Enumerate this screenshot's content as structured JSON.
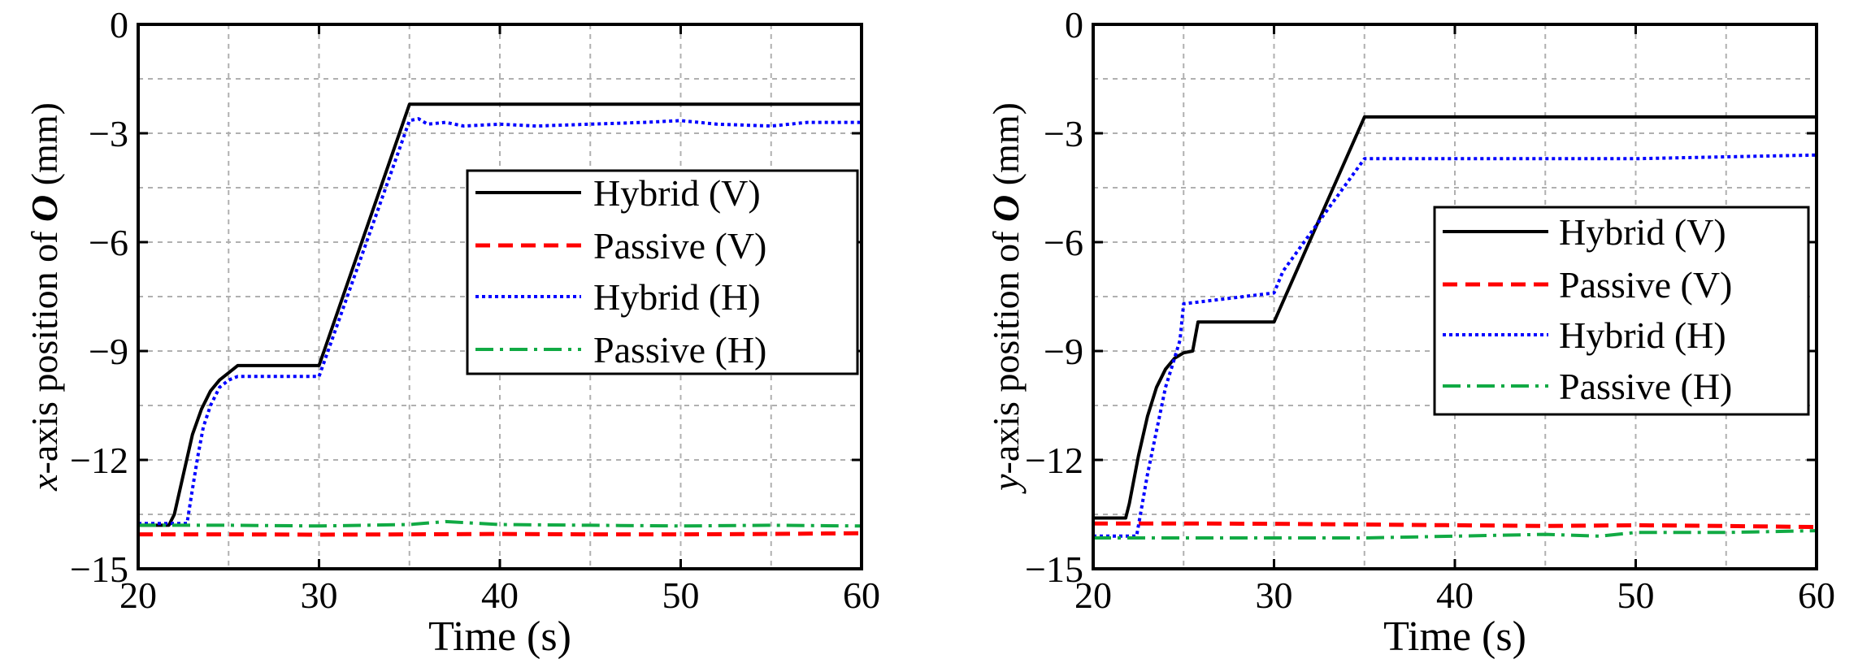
{
  "chart_data": [
    {
      "type": "line",
      "xlabel": "Time (s)",
      "ylabel": {
        "var": "x",
        "mid": "-axis position of ",
        "bold": "O",
        "unit": " (mm)"
      },
      "xlim": [
        20,
        60
      ],
      "ylim": [
        -15,
        0
      ],
      "xticks": [
        20,
        30,
        40,
        50,
        60
      ],
      "xtick_labels": [
        "20",
        "30",
        "40",
        "50",
        "60"
      ],
      "yticks": [
        0,
        -3,
        -6,
        -9,
        -12,
        -15
      ],
      "ytick_labels": [
        "0",
        "−3",
        "−6",
        "−9",
        "−12",
        "−15"
      ],
      "grid": true,
      "legend_position": "right",
      "series": [
        {
          "name": "Hybrid (V)",
          "color": "#000000",
          "style": "solid",
          "x": [
            20,
            21.7,
            22.0,
            22.5,
            23.0,
            23.5,
            24.0,
            24.5,
            25.0,
            25.5,
            30.0,
            35.0,
            36,
            40,
            45,
            50,
            55,
            60
          ],
          "y": [
            -13.8,
            -13.8,
            -13.5,
            -12.4,
            -11.3,
            -10.6,
            -10.1,
            -9.8,
            -9.6,
            -9.4,
            -9.4,
            -2.2,
            -2.2,
            -2.2,
            -2.2,
            -2.2,
            -2.2,
            -2.2
          ]
        },
        {
          "name": "Passive (V)",
          "color": "#ff0000",
          "style": "dashed",
          "x": [
            20,
            25,
            30,
            35,
            40,
            45,
            50,
            55,
            60
          ],
          "y": [
            -14.05,
            -14.05,
            -14.06,
            -14.05,
            -14.04,
            -14.05,
            -14.05,
            -14.04,
            -14.02
          ]
        },
        {
          "name": "Hybrid (H)",
          "color": "#0000ff",
          "style": "dotted",
          "x": [
            20,
            22.7,
            23.0,
            23.3,
            23.6,
            24.0,
            24.5,
            25.0,
            25.5,
            30.0,
            35.0,
            35.5,
            36,
            37,
            38,
            40,
            42,
            45,
            48,
            50,
            52,
            55,
            57,
            60
          ],
          "y": [
            -13.75,
            -13.75,
            -12.8,
            -11.9,
            -11.1,
            -10.5,
            -10.0,
            -9.8,
            -9.7,
            -9.7,
            -2.65,
            -2.6,
            -2.75,
            -2.7,
            -2.8,
            -2.75,
            -2.8,
            -2.75,
            -2.7,
            -2.65,
            -2.75,
            -2.8,
            -2.7,
            -2.7
          ]
        },
        {
          "name": "Passive (H)",
          "color": "#11aa44",
          "style": "dashdot",
          "x": [
            20,
            25,
            30,
            35,
            37,
            40,
            45,
            50,
            55,
            60
          ],
          "y": [
            -13.8,
            -13.8,
            -13.82,
            -13.78,
            -13.7,
            -13.78,
            -13.8,
            -13.82,
            -13.8,
            -13.82
          ]
        }
      ]
    },
    {
      "type": "line",
      "xlabel": "Time (s)",
      "ylabel": {
        "var": "y",
        "mid": "-axis position of ",
        "bold": "O",
        "unit": " (mm)"
      },
      "xlim": [
        20,
        60
      ],
      "ylim": [
        -15,
        0
      ],
      "xticks": [
        20,
        30,
        40,
        50,
        60
      ],
      "xtick_labels": [
        "20",
        "30",
        "40",
        "50",
        "60"
      ],
      "yticks": [
        0,
        -3,
        -6,
        -9,
        -12,
        -15
      ],
      "ytick_labels": [
        "0",
        "−3",
        "−6",
        "−9",
        "−12",
        "−15"
      ],
      "grid": true,
      "legend_position": "right",
      "series": [
        {
          "name": "Hybrid (V)",
          "color": "#000000",
          "style": "solid",
          "x": [
            20,
            21.8,
            22.0,
            22.5,
            23.0,
            23.5,
            24.0,
            24.5,
            25.0,
            25.5,
            25.8,
            30.0,
            35.0,
            36,
            40,
            45,
            50,
            55,
            60
          ],
          "y": [
            -13.6,
            -13.6,
            -13.2,
            -11.9,
            -10.8,
            -10.0,
            -9.5,
            -9.2,
            -9.05,
            -9.0,
            -8.2,
            -8.2,
            -2.55,
            -2.55,
            -2.55,
            -2.55,
            -2.55,
            -2.55,
            -2.55
          ]
        },
        {
          "name": "Passive (V)",
          "color": "#ff0000",
          "style": "dashed",
          "x": [
            20,
            25,
            30,
            35,
            40,
            45,
            50,
            55,
            60
          ],
          "y": [
            -13.75,
            -13.75,
            -13.76,
            -13.78,
            -13.8,
            -13.82,
            -13.8,
            -13.82,
            -13.85
          ]
        },
        {
          "name": "Hybrid (H)",
          "color": "#0000ff",
          "style": "dotted",
          "x": [
            20,
            22.4,
            23.0,
            23.5,
            24.0,
            24.5,
            24.8,
            25.0,
            30.0,
            30.5,
            35.0,
            36,
            40,
            45,
            50,
            55,
            60
          ],
          "y": [
            -14.1,
            -14.1,
            -12.4,
            -11.2,
            -10.0,
            -9.2,
            -8.7,
            -7.7,
            -7.4,
            -6.8,
            -3.7,
            -3.7,
            -3.7,
            -3.7,
            -3.7,
            -3.65,
            -3.6
          ]
        },
        {
          "name": "Passive (H)",
          "color": "#11aa44",
          "style": "dashdot",
          "x": [
            20,
            25,
            30,
            35,
            40,
            45,
            48,
            50,
            55,
            60
          ],
          "y": [
            -14.15,
            -14.15,
            -14.15,
            -14.15,
            -14.1,
            -14.05,
            -14.1,
            -14.0,
            -14.0,
            -13.95
          ]
        }
      ]
    }
  ]
}
